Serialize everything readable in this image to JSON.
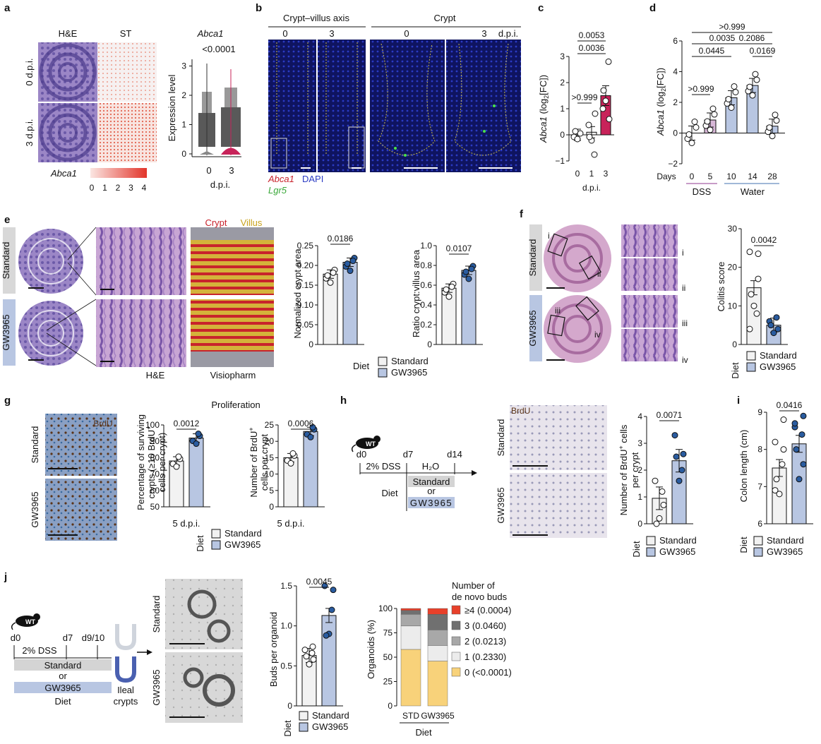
{
  "panels": {
    "a": {
      "letter": "a",
      "col_he": "H&E",
      "col_st": "ST",
      "row_0": "0 d.p.i.",
      "row_3": "3 d.p.i.",
      "gene": "Abca1",
      "scale_ticks": [
        "0",
        "1",
        "2",
        "3",
        "4"
      ],
      "violin": {
        "title": "Abca1",
        "p": "<0.0001",
        "ylabel": "Expression level",
        "yticks": [
          "0",
          "1",
          "2",
          "3"
        ],
        "xticks": [
          "0",
          "3"
        ],
        "xlabel": "d.p.i."
      }
    },
    "b": {
      "letter": "b",
      "group1": "Crypt–villus axis",
      "group2": "Crypt",
      "cols": [
        "0",
        "3",
        "0",
        "3"
      ],
      "unit": "d.p.i.",
      "legend_abca1": "Abca1",
      "legend_dapi": "DAPI",
      "legend_lgr5": "Lgr5"
    },
    "c": {
      "letter": "c",
      "ylabel_gene": "Abca1",
      "ylabel_rest": " (log",
      "ylabel_sub": "2",
      "ylabel_end": "[FC])",
      "p_top": "0.0053",
      "p_mid": "0.0036",
      "p_low": ">0.999",
      "xlabel": "d.p.i.",
      "yticks": [
        "−1",
        "0",
        "1",
        "2",
        "3"
      ]
    },
    "d": {
      "letter": "d",
      "ylabel_gene": "Abca1",
      "ylabel_rest": " (log",
      "ylabel_sub": "2",
      "ylabel_end": "[FC])",
      "p_values": [
        ">0.999",
        "0.0035",
        "0.2086",
        "0.0445",
        "0.0169",
        ">0.999"
      ],
      "days_label": "Days",
      "xticks": [
        "0",
        "5",
        "10",
        "14",
        "28"
      ],
      "dss": "DSS",
      "water": "Water",
      "yticks": [
        "−2",
        "0",
        "2",
        "4",
        "6"
      ]
    },
    "e": {
      "letter": "e",
      "standard": "Standard",
      "gw": "GW3965",
      "crypt": "Crypt",
      "villus": "Villus",
      "he": "H&E",
      "visiopharm": "Visiopharm",
      "plot1_ylabel": "Normalized crypt area",
      "plot1_p": "0.0186",
      "plot1_yticks": [
        "0",
        "0.05",
        "0.10",
        "0.15",
        "0.20",
        "0.25"
      ],
      "plot2_ylabel": "Ratio crypt:villus area",
      "plot2_p": "0.0107",
      "plot2_yticks": [
        "0",
        "0.2",
        "0.4",
        "0.6",
        "0.8",
        "1.0"
      ],
      "diet": "Diet",
      "legend_std": "Standard",
      "legend_gw": "GW3965"
    },
    "f": {
      "letter": "f",
      "standard": "Standard",
      "gw": "GW3965",
      "regions": [
        "i",
        "ii",
        "iii",
        "iv"
      ],
      "ylabel": "Colitis score",
      "p": "0.0042",
      "yticks": [
        "0",
        "10",
        "20",
        "30"
      ],
      "diet": "Diet",
      "legend_std": "Standard",
      "legend_gw": "GW3965"
    },
    "g": {
      "letter": "g",
      "brdu": "BrdU",
      "standard": "Standard",
      "gw": "GW3965",
      "proliferation": "Proliferation",
      "plot1_ylabel_1": "Percentage of surviving",
      "plot1_ylabel_2": "crypts (≥10 BrdU",
      "plot1_ylabel_3": "cells per crypt)",
      "plot1_p": "0.0012",
      "plot1_yticks": [
        "50",
        "60",
        "70",
        "80",
        "90",
        "100"
      ],
      "plot2_ylabel_1": "Number of BrdU",
      "plot2_ylabel_2": "cells per crypt",
      "plot2_p": "0.0006",
      "plot2_yticks": [
        "0",
        "5",
        "10",
        "15",
        "20",
        "25"
      ],
      "xlabel": "5 d.p.i.",
      "diet": "Diet",
      "legend_std": "Standard",
      "legend_gw": "GW3965"
    },
    "h": {
      "letter": "h",
      "wt": "WT",
      "d0": "d0",
      "d7": "d7",
      "d14": "d14",
      "dss": "2% DSS",
      "h2o": "H₂O",
      "diet": "Diet",
      "standard": "Standard",
      "or": "or",
      "gw": "GW3965",
      "brdu": "BrdU",
      "ylabel_1": "Number of BrdU",
      "ylabel_2": "cells",
      "ylabel_3": "per crypt",
      "p": "0.0071",
      "yticks": [
        "0",
        "1",
        "2",
        "3",
        "4"
      ],
      "legend_std": "Standard",
      "legend_gw": "GW3965"
    },
    "i": {
      "letter": "i",
      "ylabel": "Colon length (cm)",
      "p": "0.0416",
      "yticks": [
        "6",
        "7",
        "8",
        "9"
      ],
      "diet": "Diet",
      "legend_std": "Standard",
      "legend_gw": "GW3965"
    },
    "j": {
      "letter": "j",
      "wt": "WT",
      "d0": "d0",
      "d7": "d7",
      "d910": "d9/10",
      "dss": "2% DSS",
      "standard": "Standard",
      "or": "or",
      "gw": "GW3965",
      "diet": "Diet",
      "ileal_1": "Ileal",
      "ileal_2": "crypts",
      "img_standard": "Standard",
      "img_gw": "GW3965",
      "buds_ylabel": "Buds per organoid",
      "buds_p": "0.0045",
      "buds_yticks": [
        "0",
        "0.5",
        "1.0",
        "1.5"
      ],
      "org_ylabel": "Organoids (%)",
      "org_yticks": [
        "0",
        "25",
        "50",
        "75",
        "100"
      ],
      "org_xticks": [
        "STD",
        "GW3965"
      ],
      "org_xlabel": "Diet",
      "legend_title_1": "Number of",
      "legend_title_2": "de novo buds",
      "legend_items": [
        "≥4 (0.0004)",
        "3 (0.0460)",
        "2 (0.0213)",
        "1 (0.2330)",
        "0 (<0.0001)"
      ],
      "legend_colors": [
        "#e8402a",
        "#707070",
        "#a8a8a8",
        "#ececec",
        "#f8d27a"
      ],
      "legend_std": "Standard",
      "legend_gw": "GW3965"
    }
  },
  "chart_data": [
    {
      "id": "c",
      "type": "bar",
      "categories": [
        "0",
        "1",
        "3"
      ],
      "values": [
        0.0,
        0.1,
        1.5
      ],
      "ylim": [
        -1,
        3
      ],
      "xlabel": "d.p.i."
    },
    {
      "id": "d",
      "type": "bar",
      "categories": [
        "0",
        "5",
        "10",
        "14",
        "28"
      ],
      "values": [
        0.0,
        0.85,
        2.3,
        3.1,
        0.45
      ],
      "ylim": [
        -2,
        6
      ],
      "xlabel": "Days"
    },
    {
      "id": "e1",
      "type": "bar",
      "categories": [
        "Standard",
        "GW3965"
      ],
      "values": [
        0.178,
        0.208
      ],
      "ylim": [
        0,
        0.25
      ],
      "ylabel": "Normalized crypt area"
    },
    {
      "id": "e2",
      "type": "bar",
      "categories": [
        "Standard",
        "GW3965"
      ],
      "values": [
        0.57,
        0.75
      ],
      "ylim": [
        0,
        1.0
      ],
      "ylabel": "Ratio crypt:villus area"
    },
    {
      "id": "f",
      "type": "bar",
      "categories": [
        "Standard",
        "GW3965"
      ],
      "values": [
        14.7,
        5.0
      ],
      "ylim": [
        0,
        30
      ],
      "ylabel": "Colitis score"
    },
    {
      "id": "g1",
      "type": "bar",
      "categories": [
        "Standard",
        "GW3965"
      ],
      "values": [
        78,
        92
      ],
      "ylim": [
        50,
        100
      ]
    },
    {
      "id": "g2",
      "type": "bar",
      "categories": [
        "Standard",
        "GW3965"
      ],
      "values": [
        15,
        23
      ],
      "ylim": [
        0,
        25
      ]
    },
    {
      "id": "h",
      "type": "bar",
      "categories": [
        "Standard",
        "GW3965"
      ],
      "values": [
        0.95,
        2.35
      ],
      "ylim": [
        0,
        4
      ]
    },
    {
      "id": "i",
      "type": "bar",
      "categories": [
        "Standard",
        "GW3965"
      ],
      "values": [
        7.5,
        8.15
      ],
      "ylim": [
        6,
        9
      ],
      "ylabel": "Colon length (cm)"
    },
    {
      "id": "j1",
      "type": "bar",
      "categories": [
        "Standard",
        "GW3965"
      ],
      "values": [
        0.63,
        1.13
      ],
      "ylim": [
        0,
        1.5
      ],
      "ylabel": "Buds per organoid"
    },
    {
      "id": "j2",
      "type": "bar",
      "categories": [
        "STD",
        "GW3965"
      ],
      "ylim": [
        0,
        100
      ],
      "ylabel": "Organoids (%)",
      "series": [
        {
          "name": "0 (<0.0001)",
          "values": [
            58,
            46
          ]
        },
        {
          "name": "1 (0.2330)",
          "values": [
            24,
            16
          ]
        },
        {
          "name": "2 (0.0213)",
          "values": [
            12,
            16
          ]
        },
        {
          "name": "3 (0.0460)",
          "values": [
            4,
            16
          ]
        },
        {
          "name": "≥4 (0.0004)",
          "values": [
            2,
            6
          ]
        }
      ]
    }
  ]
}
